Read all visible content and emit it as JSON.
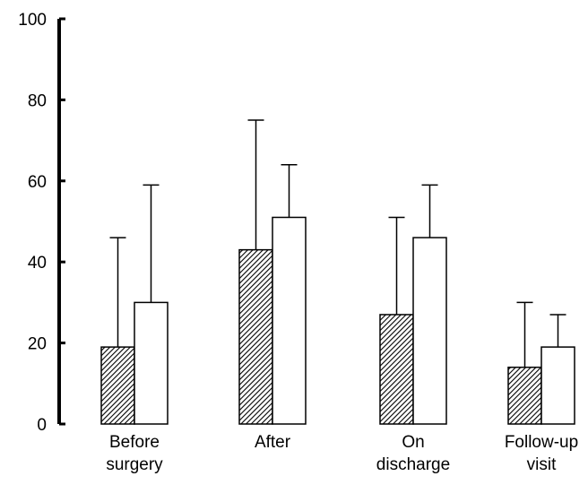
{
  "chart_data": {
    "type": "bar",
    "title": "",
    "xlabel": "",
    "ylabel": "",
    "ylim": [
      0,
      100
    ],
    "yticks": [
      0,
      20,
      40,
      60,
      80,
      100
    ],
    "grid": false,
    "categories": [
      [
        "Before",
        "surgery"
      ],
      [
        "After"
      ],
      [
        "On",
        "discharge"
      ],
      [
        "Follow-up",
        "visit"
      ]
    ],
    "series": [
      {
        "style": "hatched",
        "values": [
          19,
          43,
          27,
          14
        ],
        "error_upper": [
          46,
          75,
          51,
          30
        ]
      },
      {
        "style": "open",
        "values": [
          30,
          51,
          46,
          19
        ],
        "error_upper": [
          59,
          64,
          59,
          27
        ]
      }
    ]
  }
}
